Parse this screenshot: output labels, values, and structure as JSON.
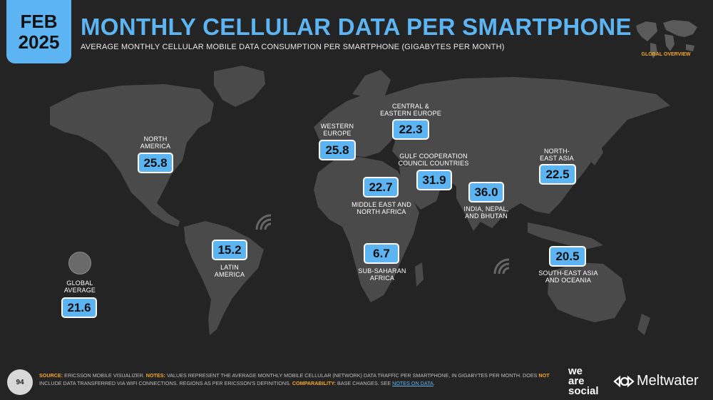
{
  "header": {
    "month": "FEB",
    "year": "2025",
    "title": "MONTHLY CELLULAR DATA PER SMARTPHONE",
    "subtitle": "AVERAGE MONTHLY CELLULAR MOBILE DATA CONSUMPTION PER SMARTPHONE (GIGABYTES PER MONTH)",
    "overview_label": "GLOBAL OVERVIEW"
  },
  "regions": {
    "north_america": {
      "label1": "NORTH",
      "label2": "AMERICA",
      "value": "25.8"
    },
    "western_europe": {
      "label1": "WESTERN",
      "label2": "EUROPE",
      "value": "25.8"
    },
    "central_eastern_europe": {
      "label1": "CENTRAL &",
      "label2": "EASTERN EUROPE",
      "value": "22.3"
    },
    "gulf": {
      "label1": "GULF COOPERATION",
      "label2": "COUNCIL COUNTRIES",
      "value": "31.9"
    },
    "mena": {
      "label1": "MIDDLE EAST AND",
      "label2": "NORTH AFRICA",
      "value": "22.7"
    },
    "india": {
      "label1": "INDIA, NEPAL,",
      "label2": "AND BHUTAN",
      "value": "36.0"
    },
    "north_east_asia": {
      "label1": "NORTH-",
      "label2": "EAST ASIA",
      "value": "22.5"
    },
    "latin_america": {
      "label1": "LATIN",
      "label2": "AMERICA",
      "value": "15.2"
    },
    "sub_saharan": {
      "label1": "SUB-SAHARAN",
      "label2": "AFRICA",
      "value": "6.7"
    },
    "sea_oceania": {
      "label1": "SOUTH-EAST ASIA",
      "label2": "AND OCEANIA",
      "value": "20.5"
    },
    "global": {
      "label1": "GLOBAL",
      "label2": "AVERAGE",
      "value": "21.6"
    }
  },
  "footer": {
    "page": "94",
    "source_key": "SOURCE:",
    "source_text": "ERICSSON MOBILE VISUALIZER.",
    "notes_key": "NOTES:",
    "notes_text1": "VALUES REPRESENT THE AVERAGE MONTHLY MOBILE CELLULAR (NETWORK) DATA TRAFFIC PER SMARTPHONE, IN GIGABYTES PER MONTH. DOES",
    "not_word": "NOT",
    "notes_text2": "INCLUDE DATA TRANSFERRED VIA WIFI CONNECTIONS. REGIONS AS PER ERICSSON'S DEFINITIONS.",
    "comparability_key": "COMPARABILITY:",
    "comparability_text": "BASE CHANGES. SEE",
    "notes_link": "NOTES ON DATA",
    "brand_line1": "we",
    "brand_line2": "are",
    "brand_line3": "social",
    "partner": "Meltwater"
  },
  "colors": {
    "accent": "#5cb5f2",
    "highlight": "#f5a623",
    "background": "#242424",
    "land": "#4a4a4a"
  }
}
